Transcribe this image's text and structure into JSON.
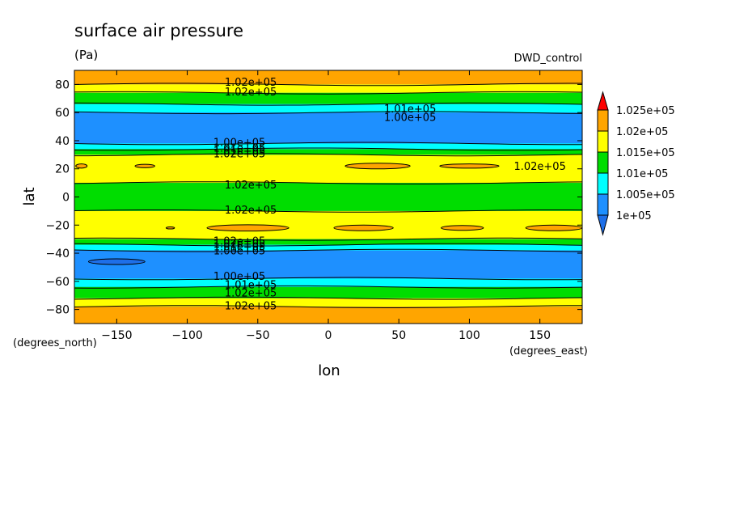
{
  "chart_data": {
    "type": "heatmap",
    "subtype": "filled-contour",
    "title": "surface air pressure",
    "units": "(Pa)",
    "experiment": "DWD_control",
    "xlabel": "lon",
    "ylabel": "lat",
    "x_units": "(degrees_east)",
    "y_units": "(degrees_north)",
    "xlim": [
      -180,
      180
    ],
    "ylim": [
      -90,
      90
    ],
    "x_ticks": [
      -150,
      -100,
      -50,
      0,
      50,
      100,
      150
    ],
    "y_ticks": [
      -80,
      -60,
      -40,
      -20,
      0,
      20,
      40,
      60,
      80
    ],
    "grid": false,
    "legend_position": "right",
    "colorbar": {
      "levels": [
        "1e+05",
        "1.005e+05",
        "1.01e+05",
        "1.015e+05",
        "1.02e+05",
        "1.025e+05"
      ],
      "colors": [
        "#1e90ff",
        "#00ffff",
        "#00dd00",
        "#ffff00",
        "#ffa500"
      ],
      "under_color": "#1e6fe8",
      "over_color": "#ff0000"
    },
    "zonal_bands": [
      {
        "lat_min": 80,
        "lat_max": 90,
        "value_range": "1.02e+05 to 1.025e+05"
      },
      {
        "lat_min": 74,
        "lat_max": 80,
        "value_range": "1.015e+05 to 1.02e+05"
      },
      {
        "lat_min": 66,
        "lat_max": 74,
        "value_range": "1.01e+05 to 1.015e+05"
      },
      {
        "lat_min": 60,
        "lat_max": 66,
        "value_range": "1.005e+05 to 1.01e+05"
      },
      {
        "lat_min": 38,
        "lat_max": 60,
        "value_range": "1e+05 to 1.005e+05"
      },
      {
        "lat_min": 34,
        "lat_max": 38,
        "value_range": "1.005e+05 to 1.01e+05"
      },
      {
        "lat_min": 30,
        "lat_max": 34,
        "value_range": "1.01e+05 to 1.015e+05"
      },
      {
        "lat_min": 10,
        "lat_max": 30,
        "value_range": "1.015e+05 to 1.02e+05"
      },
      {
        "lat_min": -10,
        "lat_max": 10,
        "value_range": "1.01e+05 to 1.015e+05"
      },
      {
        "lat_min": -30,
        "lat_max": -10,
        "value_range": "1.015e+05 to 1.02e+05"
      },
      {
        "lat_min": -34,
        "lat_max": -30,
        "value_range": "1.01e+05 to 1.015e+05"
      },
      {
        "lat_min": -38,
        "lat_max": -34,
        "value_range": "1.005e+05 to 1.01e+05"
      },
      {
        "lat_min": -58,
        "lat_max": -38,
        "value_range": "1e+05 to 1.005e+05"
      },
      {
        "lat_min": -64,
        "lat_max": -58,
        "value_range": "1.005e+05 to 1.01e+05"
      },
      {
        "lat_min": -72,
        "lat_max": -64,
        "value_range": "1.01e+05 to 1.015e+05"
      },
      {
        "lat_min": -78,
        "lat_max": -72,
        "value_range": "1.015e+05 to 1.02e+05"
      },
      {
        "lat_min": -90,
        "lat_max": -78,
        "value_range": "1.02e+05 to 1.025e+05"
      }
    ],
    "local_features": [
      {
        "lon": -130,
        "lat": 22,
        "lon_width": 14,
        "lat_height": 2.5,
        "value_range": "1.02e+05 to 1.025e+05"
      },
      {
        "lon": 35,
        "lat": 22,
        "lon_width": 46,
        "lat_height": 4,
        "value_range": "1.02e+05 to 1.025e+05"
      },
      {
        "lon": 100,
        "lat": 22,
        "lon_width": 42,
        "lat_height": 3,
        "value_range": "1.02e+05 to 1.025e+05"
      },
      {
        "lon": -175,
        "lat": 22,
        "lon_width": 8,
        "lat_height": 3,
        "value_range": "1.02e+05 to 1.025e+05"
      },
      {
        "lon": -57,
        "lat": -22,
        "lon_width": 58,
        "lat_height": 4.5,
        "value_range": "1.02e+05 to 1.025e+05"
      },
      {
        "lon": 25,
        "lat": -22,
        "lon_width": 42,
        "lat_height": 4,
        "value_range": "1.02e+05 to 1.025e+05"
      },
      {
        "lon": 95,
        "lat": -22,
        "lon_width": 30,
        "lat_height": 3.5,
        "value_range": "1.02e+05 to 1.025e+05"
      },
      {
        "lon": 160,
        "lat": -22,
        "lon_width": 40,
        "lat_height": 4,
        "value_range": "1.02e+05 to 1.025e+05"
      },
      {
        "lon": -112,
        "lat": -22,
        "lon_width": 6,
        "lat_height": 1.5,
        "value_range": "1.02e+05 to 1.025e+05"
      },
      {
        "lon": -150,
        "lat": -46,
        "lon_width": 40,
        "lat_height": 4,
        "value_range": "below 1e+05"
      }
    ],
    "contour_labels": [
      {
        "text": "1.02e+05",
        "lon": -55,
        "lat": 82
      },
      {
        "text": "1.02e+05",
        "lon": -55,
        "lat": 75
      },
      {
        "text": "1.01e+05",
        "lon": 58,
        "lat": 63
      },
      {
        "text": "1.00e+05",
        "lon": 58,
        "lat": 57
      },
      {
        "text": "1.00e+05",
        "lon": -63,
        "lat": 39
      },
      {
        "text": "1.01e+05",
        "lon": -63,
        "lat": 35
      },
      {
        "text": "1.01e+05",
        "lon": -63,
        "lat": 33
      },
      {
        "text": "1.02e+05",
        "lon": -63,
        "lat": 31
      },
      {
        "text": "1.02e+05",
        "lon": 150,
        "lat": 22
      },
      {
        "text": "1.02e+05",
        "lon": -55,
        "lat": 9
      },
      {
        "text": "1.02e+05",
        "lon": -55,
        "lat": -9
      },
      {
        "text": "1.02e+05",
        "lon": -63,
        "lat": -31
      },
      {
        "text": "1.02e+05",
        "lon": -63,
        "lat": -33
      },
      {
        "text": "1.01e+05",
        "lon": -63,
        "lat": -35
      },
      {
        "text": "1.00e+05",
        "lon": -63,
        "lat": -38
      },
      {
        "text": "1.00e+05",
        "lon": -63,
        "lat": -56
      },
      {
        "text": "1.01e+05",
        "lon": -55,
        "lat": -62
      },
      {
        "text": "1.02e+05",
        "lon": -55,
        "lat": -68
      },
      {
        "text": "1.02e+05",
        "lon": -55,
        "lat": -77
      }
    ]
  }
}
